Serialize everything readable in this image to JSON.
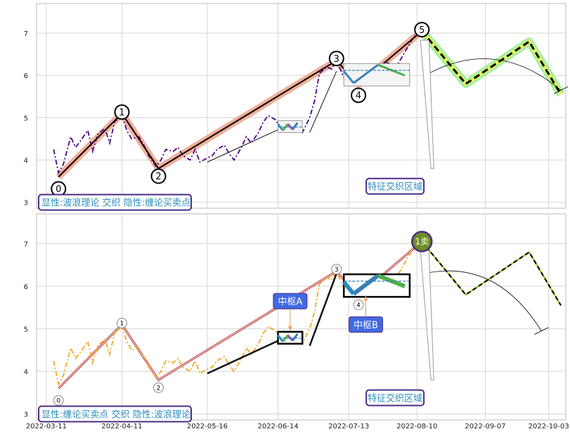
{
  "chart_data": {
    "type": "line",
    "x_ticks": [
      "2022-03-11",
      "2022-04-11",
      "2022-05-16",
      "2022-06-14",
      "2022-07-13",
      "2022-08-10",
      "2022-09-07",
      "2022-10-03"
    ],
    "y_ticks": [
      3,
      4,
      5,
      6,
      7
    ],
    "xlim": [
      "2022-03-07",
      "2022-10-10"
    ],
    "ylim": [
      2.86,
      7.7
    ],
    "grid": true,
    "panels": [
      {
        "name": "top",
        "info_text": "显性:波浪理论 交织 隐性:缠论买卖点",
        "region_label": "特征交织区域",
        "price_series": [
          [
            "2022-03-14",
            4.25
          ],
          [
            "2022-03-16",
            3.7
          ],
          [
            "2022-03-18",
            3.9
          ],
          [
            "2022-03-21",
            4.55
          ],
          [
            "2022-03-23",
            4.3
          ],
          [
            "2022-03-25",
            4.45
          ],
          [
            "2022-03-28",
            4.7
          ],
          [
            "2022-03-30",
            4.2
          ],
          [
            "2022-04-01",
            4.6
          ],
          [
            "2022-04-04",
            4.75
          ],
          [
            "2022-04-06",
            4.4
          ],
          [
            "2022-04-08",
            4.9
          ],
          [
            "2022-04-11",
            5.05
          ],
          [
            "2022-04-13",
            4.7
          ],
          [
            "2022-04-15",
            4.5
          ],
          [
            "2022-04-18",
            4.55
          ],
          [
            "2022-04-20",
            4.35
          ],
          [
            "2022-04-22",
            4.1
          ],
          [
            "2022-04-25",
            3.85
          ],
          [
            "2022-04-27",
            4.0
          ],
          [
            "2022-04-29",
            4.25
          ],
          [
            "2022-05-02",
            4.2
          ],
          [
            "2022-05-04",
            4.3
          ],
          [
            "2022-05-06",
            4.1
          ],
          [
            "2022-05-09",
            4.0
          ],
          [
            "2022-05-11",
            4.25
          ],
          [
            "2022-05-13",
            3.95
          ],
          [
            "2022-05-16",
            4.05
          ],
          [
            "2022-05-18",
            4.1
          ],
          [
            "2022-05-20",
            4.25
          ],
          [
            "2022-05-23",
            4.35
          ],
          [
            "2022-05-25",
            4.15
          ],
          [
            "2022-05-27",
            4.0
          ],
          [
            "2022-05-30",
            4.3
          ],
          [
            "2022-06-01",
            4.55
          ],
          [
            "2022-06-03",
            4.4
          ],
          [
            "2022-06-06",
            4.65
          ],
          [
            "2022-06-08",
            4.9
          ],
          [
            "2022-06-10",
            5.05
          ],
          [
            "2022-06-13",
            4.95
          ],
          [
            "2022-06-15",
            4.75
          ],
          [
            "2022-06-17",
            4.7
          ],
          [
            "2022-06-20",
            4.8
          ],
          [
            "2022-06-22",
            4.85
          ],
          [
            "2022-06-24",
            4.65
          ],
          [
            "2022-06-27",
            5.0
          ],
          [
            "2022-06-29",
            5.4
          ],
          [
            "2022-07-01",
            6.05
          ],
          [
            "2022-07-04",
            6.2
          ],
          [
            "2022-07-06",
            6.15
          ],
          [
            "2022-07-08",
            6.35
          ],
          [
            "2022-07-11",
            5.95
          ],
          [
            "2022-07-13",
            5.8
          ],
          [
            "2022-07-15",
            6.0
          ],
          [
            "2022-07-18",
            6.1
          ],
          [
            "2022-07-20",
            6.0
          ],
          [
            "2022-07-22",
            6.15
          ],
          [
            "2022-07-25",
            6.05
          ],
          [
            "2022-07-27",
            6.25
          ],
          [
            "2022-07-29",
            6.3
          ],
          [
            "2022-08-01",
            6.15
          ],
          [
            "2022-08-03",
            6.35
          ],
          [
            "2022-08-05",
            6.55
          ],
          [
            "2022-08-08",
            6.85
          ],
          [
            "2022-08-10",
            7.0
          ],
          [
            "2022-08-12",
            6.9
          ],
          [
            "2022-08-15",
            6.95
          ]
        ],
        "wave_points": [
          {
            "label": "0",
            "date": "2022-03-16",
            "value": 3.6
          },
          {
            "label": "1",
            "date": "2022-04-11",
            "value": 5.1
          },
          {
            "label": "2",
            "date": "2022-04-26",
            "value": 3.8
          },
          {
            "label": "3",
            "date": "2022-07-08",
            "value": 6.35
          },
          {
            "label": "4",
            "date": "2022-07-17",
            "value": 5.78
          },
          {
            "label": "5",
            "date": "2022-08-12",
            "value": 7.05
          }
        ],
        "forecast_path": [
          [
            "2022-08-12",
            7.05
          ],
          [
            "2022-08-30",
            5.8
          ],
          [
            "2022-09-25",
            6.8
          ],
          [
            "2022-10-08",
            5.55
          ]
        ]
      },
      {
        "name": "bottom",
        "info_text": "显性:缠论买卖点 交织 隐性:波浪理论",
        "region_label": "特征交织区域",
        "signal_label": "1卖",
        "pivot_labels": [
          "中枢A",
          "中枢B"
        ],
        "price_series": [
          [
            "2022-03-14",
            4.25
          ],
          [
            "2022-03-16",
            3.7
          ],
          [
            "2022-03-18",
            3.9
          ],
          [
            "2022-03-21",
            4.55
          ],
          [
            "2022-03-23",
            4.3
          ],
          [
            "2022-03-25",
            4.45
          ],
          [
            "2022-03-28",
            4.7
          ],
          [
            "2022-03-30",
            4.2
          ],
          [
            "2022-04-01",
            4.6
          ],
          [
            "2022-04-04",
            4.75
          ],
          [
            "2022-04-06",
            4.4
          ],
          [
            "2022-04-08",
            4.9
          ],
          [
            "2022-04-11",
            5.05
          ],
          [
            "2022-04-13",
            4.7
          ],
          [
            "2022-04-15",
            4.5
          ],
          [
            "2022-04-18",
            4.55
          ],
          [
            "2022-04-20",
            4.35
          ],
          [
            "2022-04-22",
            4.1
          ],
          [
            "2022-04-25",
            3.85
          ],
          [
            "2022-04-27",
            4.0
          ],
          [
            "2022-04-29",
            4.25
          ],
          [
            "2022-05-02",
            4.2
          ],
          [
            "2022-05-04",
            4.3
          ],
          [
            "2022-05-06",
            4.1
          ],
          [
            "2022-05-09",
            4.0
          ],
          [
            "2022-05-11",
            4.25
          ],
          [
            "2022-05-13",
            3.95
          ],
          [
            "2022-05-16",
            4.05
          ],
          [
            "2022-05-18",
            4.1
          ],
          [
            "2022-05-20",
            4.25
          ],
          [
            "2022-05-23",
            4.35
          ],
          [
            "2022-05-25",
            4.15
          ],
          [
            "2022-05-27",
            4.0
          ],
          [
            "2022-05-30",
            4.3
          ],
          [
            "2022-06-01",
            4.55
          ],
          [
            "2022-06-03",
            4.4
          ],
          [
            "2022-06-06",
            4.65
          ],
          [
            "2022-06-08",
            4.9
          ],
          [
            "2022-06-10",
            5.05
          ],
          [
            "2022-06-13",
            4.95
          ],
          [
            "2022-06-15",
            4.75
          ],
          [
            "2022-06-17",
            4.7
          ],
          [
            "2022-06-20",
            4.8
          ],
          [
            "2022-06-22",
            4.85
          ],
          [
            "2022-06-24",
            4.65
          ],
          [
            "2022-06-27",
            5.0
          ],
          [
            "2022-06-29",
            5.4
          ],
          [
            "2022-07-01",
            6.05
          ],
          [
            "2022-07-04",
            6.2
          ],
          [
            "2022-07-06",
            6.15
          ],
          [
            "2022-07-08",
            6.35
          ],
          [
            "2022-07-11",
            5.95
          ],
          [
            "2022-07-13",
            5.8
          ],
          [
            "2022-07-15",
            6.0
          ],
          [
            "2022-07-18",
            6.1
          ],
          [
            "2022-07-20",
            6.0
          ],
          [
            "2022-07-22",
            6.15
          ],
          [
            "2022-07-25",
            6.05
          ],
          [
            "2022-07-27",
            6.25
          ],
          [
            "2022-07-29",
            6.3
          ],
          [
            "2022-08-01",
            6.15
          ],
          [
            "2022-08-03",
            6.35
          ],
          [
            "2022-08-05",
            6.55
          ],
          [
            "2022-08-08",
            6.85
          ],
          [
            "2022-08-10",
            7.0
          ],
          [
            "2022-08-12",
            6.9
          ],
          [
            "2022-08-15",
            6.95
          ]
        ],
        "wave_points": [
          {
            "label": "0",
            "date": "2022-03-16",
            "value": 3.6
          },
          {
            "label": "1",
            "date": "2022-04-11",
            "value": 5.1
          },
          {
            "label": "2",
            "date": "2022-04-26",
            "value": 3.8
          },
          {
            "label": "3",
            "date": "2022-07-08",
            "value": 6.35
          },
          {
            "label": "4",
            "date": "2022-07-17",
            "value": 5.78
          },
          {
            "label": "1卖",
            "date": "2022-08-12",
            "value": 7.05
          }
        ],
        "forecast_path": [
          [
            "2022-08-12",
            7.05
          ],
          [
            "2022-08-30",
            5.8
          ],
          [
            "2022-09-25",
            6.8
          ],
          [
            "2022-10-08",
            5.55
          ]
        ]
      }
    ]
  }
}
